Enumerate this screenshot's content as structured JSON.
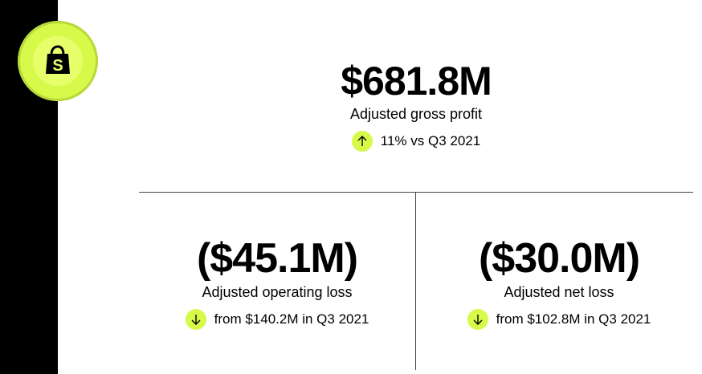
{
  "brand": {
    "logo_icon": "shopify-bag-icon",
    "accent_color": "#d7f94a"
  },
  "metrics": {
    "gross_profit": {
      "value": "$681.8M",
      "label": "Adjusted gross profit",
      "change_text": "11% vs Q3 2021",
      "direction": "up"
    },
    "operating_loss": {
      "value": "($45.1M)",
      "label": "Adjusted operating loss",
      "change_text": "from $140.2M in Q3 2021",
      "direction": "down"
    },
    "net_loss": {
      "value": "($30.0M)",
      "label": "Adjusted net loss",
      "change_text": "from $102.8M in Q3 2021",
      "direction": "down"
    }
  }
}
